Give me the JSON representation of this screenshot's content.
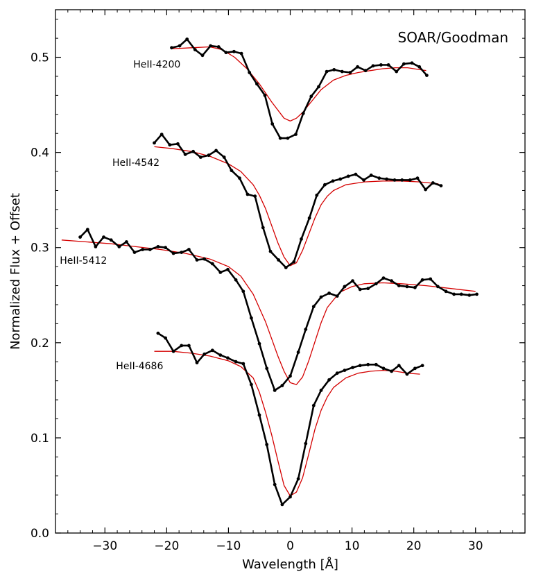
{
  "chart_data": {
    "type": "line",
    "annotation": "SOAR/Goodman",
    "xlabel": "Wavelength [Å]",
    "ylabel": "Normalized Flux + Offset",
    "xlim": [
      -38,
      38
    ],
    "ylim": [
      0.0,
      0.55
    ],
    "x_ticks": [
      -30,
      -20,
      -10,
      0,
      10,
      20,
      30
    ],
    "x_tick_labels": [
      "−30",
      "−20",
      "−10",
      "0",
      "10",
      "20",
      "30"
    ],
    "y_ticks": [
      0.0,
      0.1,
      0.2,
      0.3,
      0.4,
      0.5
    ],
    "y_tick_labels": [
      "0.0",
      "0.1",
      "0.2",
      "0.3",
      "0.4",
      "0.5"
    ],
    "series": [
      {
        "name": "HeII-4200",
        "label_pos": [
          -25.4,
          0.489
        ],
        "observed": {
          "x": [
            -19.2,
            -17.9,
            -16.7,
            -15.4,
            -14.2,
            -12.9,
            -11.6,
            -10.4,
            -9.1,
            -7.9,
            -6.6,
            -5.4,
            -4.1,
            -2.9,
            -1.6,
            -0.4,
            0.9,
            2.1,
            3.4,
            4.6,
            5.9,
            7.1,
            8.4,
            9.7,
            10.9,
            12.2,
            13.4,
            14.7,
            15.9,
            17.2,
            18.4,
            19.7,
            20.9,
            22.1
          ],
          "y": [
            0.51,
            0.512,
            0.519,
            0.508,
            0.502,
            0.512,
            0.511,
            0.505,
            0.506,
            0.504,
            0.484,
            0.472,
            0.46,
            0.43,
            0.415,
            0.415,
            0.419,
            0.441,
            0.459,
            0.469,
            0.485,
            0.487,
            0.485,
            0.484,
            0.49,
            0.486,
            0.491,
            0.492,
            0.492,
            0.485,
            0.493,
            0.494,
            0.49,
            0.481
          ]
        },
        "model": {
          "x": [
            -19,
            -16,
            -13,
            -11,
            -9,
            -7,
            -5,
            -3,
            -1,
            0,
            1,
            2,
            3,
            5,
            7,
            9,
            11,
            13,
            15,
            17,
            19,
            21,
            22
          ],
          "y": [
            0.509,
            0.51,
            0.511,
            0.508,
            0.5,
            0.488,
            0.472,
            0.453,
            0.436,
            0.433,
            0.436,
            0.442,
            0.45,
            0.466,
            0.476,
            0.481,
            0.484,
            0.486,
            0.488,
            0.489,
            0.489,
            0.487,
            0.486
          ]
        }
      },
      {
        "name": "HeII-4542",
        "label_pos": [
          -28.8,
          0.386
        ],
        "observed": {
          "x": [
            -22.0,
            -20.8,
            -19.5,
            -18.2,
            -17.0,
            -15.7,
            -14.5,
            -13.2,
            -12.0,
            -10.7,
            -9.5,
            -8.2,
            -6.9,
            -5.7,
            -4.4,
            -3.2,
            -1.9,
            -0.7,
            0.6,
            1.8,
            3.1,
            4.3,
            5.6,
            6.9,
            8.1,
            9.4,
            10.6,
            11.9,
            13.1,
            14.4,
            15.6,
            16.9,
            18.1,
            19.4,
            20.6,
            21.9,
            23.1,
            24.4
          ],
          "y": [
            0.41,
            0.419,
            0.408,
            0.409,
            0.398,
            0.401,
            0.395,
            0.397,
            0.402,
            0.395,
            0.381,
            0.373,
            0.356,
            0.354,
            0.321,
            0.296,
            0.287,
            0.279,
            0.285,
            0.309,
            0.331,
            0.355,
            0.366,
            0.37,
            0.372,
            0.375,
            0.377,
            0.371,
            0.376,
            0.373,
            0.372,
            0.371,
            0.371,
            0.371,
            0.373,
            0.361,
            0.368,
            0.365
          ]
        },
        "model": {
          "x": [
            -22,
            -19,
            -16,
            -13,
            -10,
            -8,
            -6,
            -5,
            -4,
            -3,
            -2,
            -1,
            0,
            1,
            2,
            3,
            4,
            5,
            6,
            7,
            9,
            12,
            15,
            18,
            21,
            24
          ],
          "y": [
            0.406,
            0.404,
            0.401,
            0.396,
            0.388,
            0.38,
            0.366,
            0.355,
            0.341,
            0.323,
            0.305,
            0.29,
            0.281,
            0.284,
            0.297,
            0.314,
            0.331,
            0.345,
            0.354,
            0.36,
            0.366,
            0.369,
            0.37,
            0.37,
            0.369,
            0.367
          ]
        }
      },
      {
        "name": "HeII-5412",
        "label_pos": [
          -37.3,
          0.283
        ],
        "observed": {
          "x": [
            -34.0,
            -32.8,
            -31.5,
            -30.2,
            -29.0,
            -27.7,
            -26.5,
            -25.2,
            -23.9,
            -22.7,
            -21.4,
            -20.2,
            -18.9,
            -17.6,
            -16.4,
            -15.1,
            -13.9,
            -12.6,
            -11.3,
            -10.1,
            -8.8,
            -7.6,
            -6.3,
            -5.0,
            -3.8,
            -2.5,
            -1.3,
            0.0,
            1.3,
            2.5,
            3.8,
            5.0,
            6.3,
            7.6,
            8.8,
            10.1,
            11.3,
            12.6,
            13.9,
            15.1,
            16.4,
            17.6,
            18.9,
            20.2,
            21.4,
            22.7,
            23.9,
            25.2,
            26.5,
            27.7,
            29.0,
            30.2
          ],
          "y": [
            0.311,
            0.319,
            0.301,
            0.311,
            0.308,
            0.301,
            0.306,
            0.295,
            0.298,
            0.298,
            0.301,
            0.3,
            0.294,
            0.295,
            0.298,
            0.287,
            0.288,
            0.283,
            0.274,
            0.277,
            0.266,
            0.254,
            0.226,
            0.199,
            0.173,
            0.15,
            0.155,
            0.165,
            0.19,
            0.214,
            0.238,
            0.248,
            0.252,
            0.249,
            0.259,
            0.265,
            0.256,
            0.257,
            0.262,
            0.268,
            0.265,
            0.26,
            0.259,
            0.258,
            0.266,
            0.267,
            0.259,
            0.254,
            0.251,
            0.251,
            0.25,
            0.251
          ],
          "_note": ""
        },
        "model": {
          "x": [
            -37,
            -33,
            -29,
            -25,
            -21,
            -17,
            -13,
            -10,
            -8,
            -6,
            -4,
            -3,
            -2,
            -1,
            0,
            1,
            2,
            3,
            4,
            5,
            6,
            8,
            10,
            12,
            15,
            18,
            22,
            26,
            30
          ],
          "y": [
            0.308,
            0.306,
            0.304,
            0.301,
            0.298,
            0.294,
            0.288,
            0.28,
            0.27,
            0.251,
            0.222,
            0.204,
            0.186,
            0.17,
            0.158,
            0.156,
            0.164,
            0.181,
            0.201,
            0.221,
            0.237,
            0.253,
            0.259,
            0.262,
            0.263,
            0.262,
            0.26,
            0.257,
            0.254
          ]
        }
      },
      {
        "name": "HeII-4686",
        "label_pos": [
          -28.2,
          0.172
        ],
        "observed": {
          "x": [
            -21.4,
            -20.2,
            -18.9,
            -17.6,
            -16.4,
            -15.1,
            -13.9,
            -12.6,
            -11.3,
            -10.1,
            -8.8,
            -7.6,
            -6.3,
            -5.0,
            -3.8,
            -2.5,
            -1.3,
            0.0,
            1.3,
            2.5,
            3.8,
            5.0,
            6.3,
            7.6,
            8.8,
            10.1,
            11.3,
            12.6,
            13.9,
            15.1,
            16.4,
            17.6,
            18.9,
            20.2,
            21.4
          ],
          "y": [
            0.21,
            0.205,
            0.191,
            0.197,
            0.197,
            0.179,
            0.188,
            0.192,
            0.187,
            0.184,
            0.18,
            0.178,
            0.156,
            0.124,
            0.093,
            0.051,
            0.03,
            0.038,
            0.057,
            0.094,
            0.134,
            0.15,
            0.161,
            0.168,
            0.171,
            0.174,
            0.176,
            0.177,
            0.177,
            0.173,
            0.17,
            0.176,
            0.167,
            0.173,
            0.176
          ]
        },
        "model": {
          "x": [
            -22,
            -19,
            -16,
            -13,
            -10,
            -8,
            -6,
            -5,
            -4,
            -3,
            -2,
            -1,
            0,
            1,
            2,
            3,
            4,
            5,
            6,
            7,
            9,
            11,
            13,
            15,
            17,
            19,
            21
          ],
          "y": [
            0.191,
            0.191,
            0.189,
            0.186,
            0.181,
            0.175,
            0.163,
            0.148,
            0.127,
            0.103,
            0.076,
            0.05,
            0.039,
            0.043,
            0.058,
            0.083,
            0.109,
            0.129,
            0.143,
            0.153,
            0.163,
            0.168,
            0.17,
            0.171,
            0.17,
            0.168,
            0.167
          ]
        }
      }
    ]
  }
}
